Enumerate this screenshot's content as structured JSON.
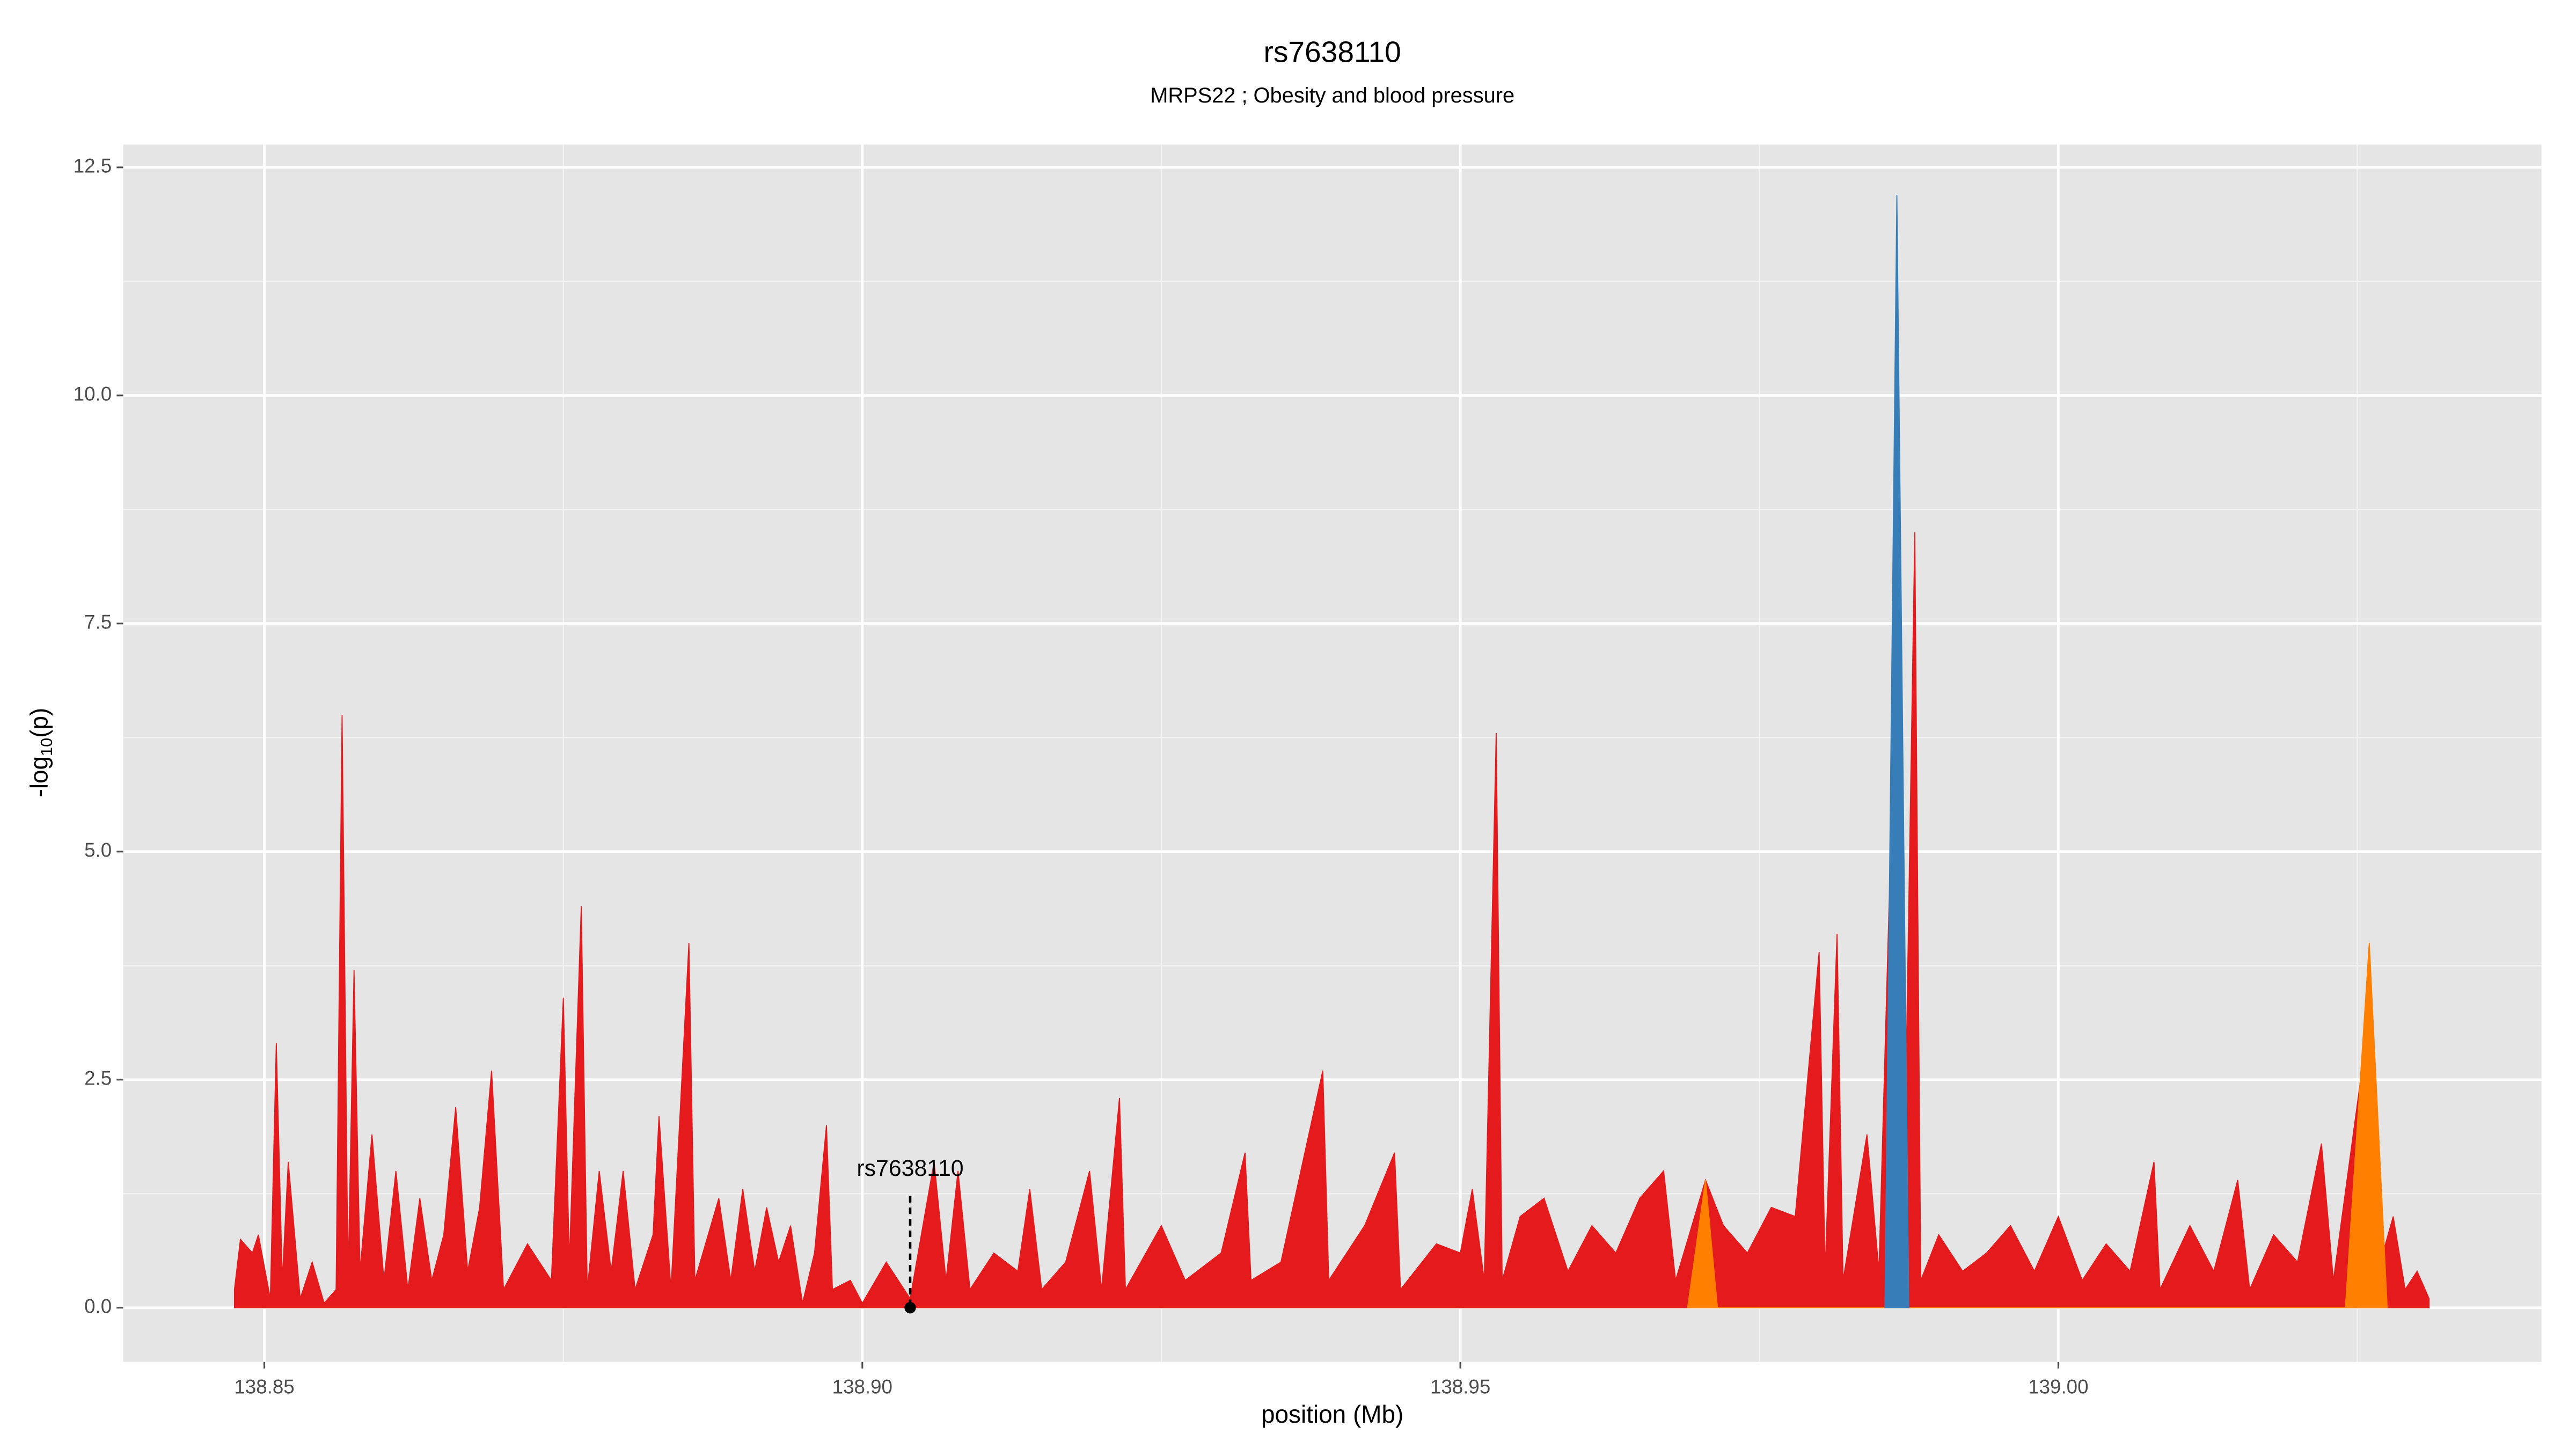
{
  "chart_data": {
    "type": "area",
    "title": "rs7638110",
    "subtitle": "MRPS22 ; Obesity and blood pressure",
    "x_label": "position (Mb)",
    "y_label": {
      "prefix": "-log",
      "sub": "10",
      "suffix": "(p)"
    },
    "xlim": [
      138.8382,
      139.0404
    ],
    "ylim": [
      -0.594,
      12.75
    ],
    "xticks": [
      138.85,
      {
        "value": 138.9,
        "label": "138.90"
      },
      138.95,
      {
        "value": 139,
        "label": "139.00"
      }
    ],
    "yticks": [
      {
        "value": 0,
        "label": "0.0"
      },
      2.5,
      {
        "value": 5,
        "label": "5.0"
      },
      7.5,
      {
        "value": 10,
        "label": "10.0"
      },
      12.5
    ],
    "grid": true,
    "background": "#e5e5e5",
    "series": [
      {
        "color": "#e41a1c",
        "x": [
          138.8475,
          138.848,
          138.849,
          138.8495,
          138.8505,
          138.851,
          138.8515,
          138.852,
          138.853,
          138.854,
          138.855,
          138.856,
          138.8565,
          138.857,
          138.8575,
          138.858,
          138.859,
          138.86,
          138.861,
          138.862,
          138.863,
          138.864,
          138.865,
          138.866,
          138.867,
          138.868,
          138.869,
          138.87,
          138.872,
          138.874,
          138.875,
          138.8755,
          138.8765,
          138.877,
          138.878,
          138.879,
          138.88,
          138.881,
          138.8825,
          138.883,
          138.884,
          138.8855,
          138.886,
          138.888,
          138.889,
          138.89,
          138.891,
          138.892,
          138.893,
          138.894,
          138.895,
          138.896,
          138.897,
          138.8975,
          138.899,
          138.9,
          138.902,
          138.904,
          138.906,
          138.907,
          138.908,
          138.909,
          138.911,
          138.913,
          138.914,
          138.915,
          138.917,
          138.919,
          138.92,
          138.9215,
          138.922,
          138.925,
          138.927,
          138.93,
          138.932,
          138.9325,
          138.935,
          138.937,
          138.9385,
          138.939,
          138.942,
          138.9445,
          138.945,
          138.948,
          138.95,
          138.951,
          138.952,
          138.953,
          138.9535,
          138.955,
          138.957,
          138.959,
          138.961,
          138.963,
          138.965,
          138.967,
          138.968,
          138.9705,
          138.972,
          138.974,
          138.976,
          138.978,
          138.98,
          138.9805,
          138.9815,
          138.982,
          138.984,
          138.985,
          138.9865,
          138.987,
          138.988,
          138.9885,
          138.99,
          138.992,
          138.994,
          138.996,
          138.998,
          139,
          139.002,
          139.004,
          139.006,
          139.008,
          139.0085,
          139.011,
          139.013,
          139.015,
          139.016,
          139.018,
          139.02,
          139.022,
          139.023,
          139.026,
          139.0265,
          139.028,
          139.029,
          139.03,
          139.031
        ],
        "values": [
          0.2,
          0.75,
          0.6,
          0.8,
          0.1,
          2.9,
          0.3,
          1.6,
          0.1,
          0.5,
          0.05,
          0.2,
          6.5,
          0.3,
          3.7,
          0.4,
          1.9,
          0.3,
          1.5,
          0.2,
          1.2,
          0.3,
          0.8,
          2.2,
          0.4,
          1.1,
          2.6,
          0.2,
          0.7,
          0.3,
          3.4,
          0.5,
          4.4,
          0.2,
          1.5,
          0.4,
          1.5,
          0.2,
          0.8,
          2.1,
          0.2,
          4.0,
          0.3,
          1.2,
          0.3,
          1.3,
          0.4,
          1.1,
          0.5,
          0.9,
          0.05,
          0.6,
          2.0,
          0.2,
          0.3,
          0.05,
          0.5,
          0.1,
          1.6,
          0.3,
          1.5,
          0.2,
          0.6,
          0.4,
          1.3,
          0.2,
          0.5,
          1.5,
          0.2,
          2.3,
          0.2,
          0.9,
          0.3,
          0.6,
          1.7,
          0.3,
          0.5,
          1.7,
          2.6,
          0.3,
          0.9,
          1.7,
          0.2,
          0.7,
          0.6,
          1.3,
          0.3,
          6.3,
          0.3,
          1.0,
          1.2,
          0.4,
          0.9,
          0.6,
          1.2,
          1.5,
          0.3,
          1.4,
          0.9,
          0.6,
          1.1,
          1.0,
          3.9,
          0.4,
          4.1,
          0.3,
          1.9,
          0.4,
          7.5,
          0.4,
          8.5,
          0.3,
          0.8,
          0.4,
          0.6,
          0.9,
          0.4,
          1.0,
          0.3,
          0.7,
          0.4,
          1.6,
          0.2,
          0.9,
          0.4,
          1.4,
          0.2,
          0.8,
          0.5,
          1.8,
          0.3,
          3.2,
          0.3,
          1.0,
          0.2,
          0.4,
          0.1
        ]
      },
      {
        "color": "#ff7f00",
        "x": [
          138.969,
          138.9705,
          138.9715,
          139.024,
          139.026,
          139.0275
        ],
        "values": [
          0,
          1.4,
          0,
          0,
          4.0,
          0
        ]
      },
      {
        "color": "#377eb8",
        "x": [
          138.9855,
          138.9865,
          138.9875
        ],
        "values": [
          0,
          12.2,
          0
        ]
      }
    ],
    "annotation": {
      "text": "rs7638110",
      "x": 138.904
    }
  }
}
